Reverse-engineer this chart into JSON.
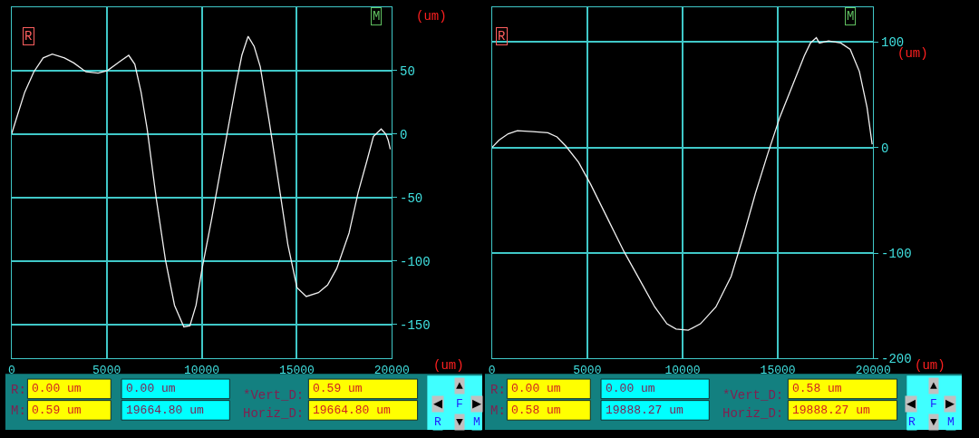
{
  "chart_data": [
    {
      "type": "line",
      "xlabel": "(um)",
      "ylabel": "(um)",
      "xlim": [
        0,
        20000
      ],
      "ylim": [
        -177,
        100
      ],
      "xticks": [
        0,
        5000,
        10000,
        15000,
        20000
      ],
      "yticks": [
        50,
        0,
        -50,
        -100,
        -150
      ],
      "grid": true,
      "x": [
        0,
        290,
        690,
        1170,
        1660,
        2140,
        2780,
        3270,
        3910,
        4550,
        5040,
        5680,
        6160,
        6480,
        6810,
        7130,
        7610,
        8090,
        8570,
        9060,
        9380,
        9700,
        10020,
        10510,
        11150,
        11790,
        12110,
        12440,
        12760,
        13080,
        13560,
        14050,
        14530,
        15010,
        15500,
        16140,
        16620,
        17100,
        17750,
        18230,
        18710,
        19030,
        19440,
        19680,
        19810,
        19920
      ],
      "series": [
        {
          "color": "#f0f0f0",
          "values": [
            0,
            14,
            33,
            49,
            60,
            63,
            60,
            56,
            49,
            48,
            50,
            57,
            62,
            55,
            33,
            4,
            -51,
            -99,
            -135,
            -152,
            -151,
            -135,
            -106,
            -68,
            -15,
            38,
            62,
            77,
            69,
            53,
            9,
            -39,
            -87,
            -121,
            -128,
            -125,
            -119,
            -106,
            -78,
            -46,
            -20,
            -2,
            4,
            0,
            -5,
            -12
          ]
        }
      ],
      "annotations": [
        "R",
        "M",
        "R:",
        "M:",
        "0.00 um",
        "0.59 um",
        "0.00 um",
        "19664.80 um",
        "*Vert_D:",
        "Horiz_D:",
        "0.59 um",
        "19664.80 um",
        "▲",
        "◀",
        "F",
        "▶",
        "R",
        "▼",
        "M"
      ]
    },
    {
      "type": "line",
      "xlabel": "(um)",
      "ylabel": "(um)",
      "xlim": [
        0,
        20000
      ],
      "ylim": [
        -200,
        133
      ],
      "xticks": [
        0,
        5000,
        10000,
        15000,
        20000
      ],
      "yticks": [
        100,
        0,
        -100,
        -200
      ],
      "grid": true,
      "x": [
        0,
        370,
        850,
        1330,
        2130,
        2930,
        3410,
        3890,
        4540,
        5180,
        6140,
        6940,
        7740,
        8540,
        9180,
        9660,
        10300,
        10940,
        11750,
        12550,
        13190,
        13830,
        14470,
        15110,
        15750,
        16390,
        16710,
        17020,
        17180,
        17660,
        18300,
        18800,
        19280,
        19680,
        19950
      ],
      "series": [
        {
          "color": "#f0f0f0",
          "values": [
            0,
            7,
            13,
            16,
            15,
            14,
            10,
            1,
            -14,
            -35,
            -70,
            -99,
            -125,
            -151,
            -167,
            -172,
            -173,
            -167,
            -151,
            -122,
            -84,
            -43,
            -6,
            29,
            58,
            87,
            99,
            104,
            99,
            101,
            99,
            93,
            72,
            38,
            3
          ]
        }
      ],
      "annotations": [
        "R",
        "M",
        "R:",
        "M:",
        "0.00 um",
        "0.58 um",
        "0.00 um",
        "19888.27 um",
        "*Vert_D:",
        "Horiz_D:",
        "0.58 um",
        "19888.27 um",
        "▲",
        "◀",
        "F",
        "▶",
        "R",
        "▼",
        "M"
      ]
    }
  ]
}
